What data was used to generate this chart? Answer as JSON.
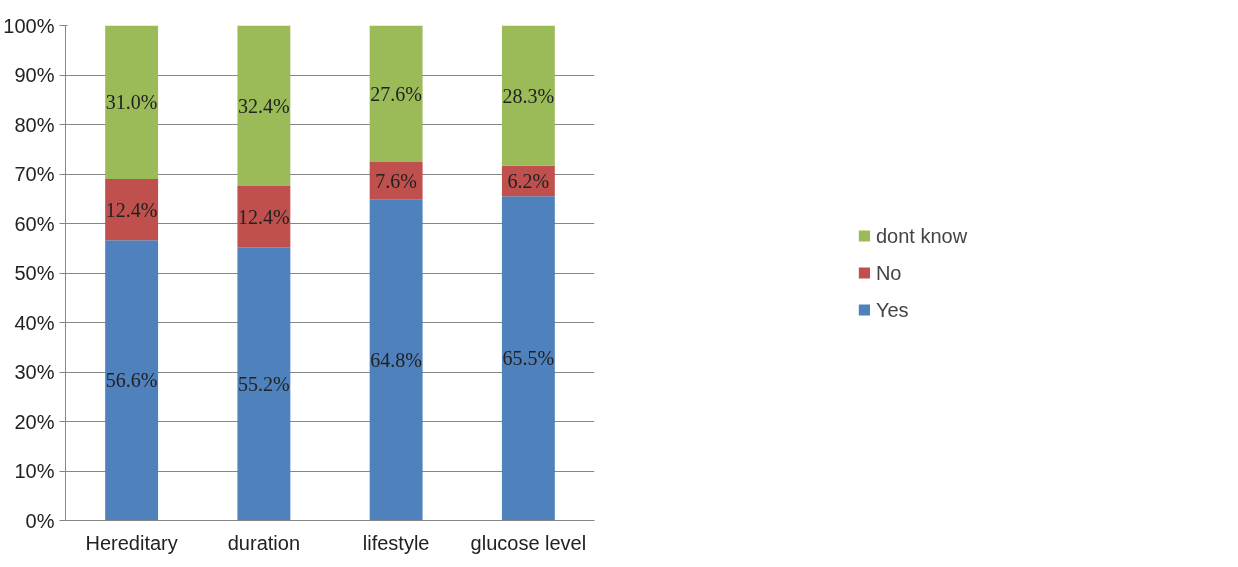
{
  "chart_data": {
    "type": "bar",
    "stacked": true,
    "categories": [
      "Hereditary",
      "duration",
      "lifestyle",
      "glucose level"
    ],
    "series": [
      {
        "name": "Yes",
        "color": "#4f81bd",
        "values": [
          56.6,
          55.2,
          64.8,
          65.5
        ],
        "value_labels": [
          "56.6%",
          "55.2%",
          "64.8%",
          "65.5%"
        ]
      },
      {
        "name": "No",
        "color": "#c0504d",
        "values": [
          12.4,
          12.4,
          7.6,
          6.2
        ],
        "value_labels": [
          "12.4%",
          "12.4%",
          "7.6%",
          "6.2%"
        ]
      },
      {
        "name": "dont know",
        "color": "#9bbb59",
        "values": [
          31.0,
          32.4,
          27.6,
          28.3
        ],
        "value_labels": [
          "31.0%",
          "32.4%",
          "27.6%",
          "28.3%"
        ]
      }
    ],
    "ylim": [
      0,
      100
    ],
    "yticks": [
      {
        "value": 0,
        "label": "0%"
      },
      {
        "value": 10,
        "label": "10%"
      },
      {
        "value": 20,
        "label": "20%"
      },
      {
        "value": 30,
        "label": "30%"
      },
      {
        "value": 40,
        "label": "40%"
      },
      {
        "value": 50,
        "label": "50%"
      },
      {
        "value": 60,
        "label": "60%"
      },
      {
        "value": 70,
        "label": "70%"
      },
      {
        "value": 80,
        "label": "80%"
      },
      {
        "value": 90,
        "label": "90%"
      },
      {
        "value": 100,
        "label": "100%"
      }
    ],
    "grid": "y",
    "legend": "right"
  }
}
